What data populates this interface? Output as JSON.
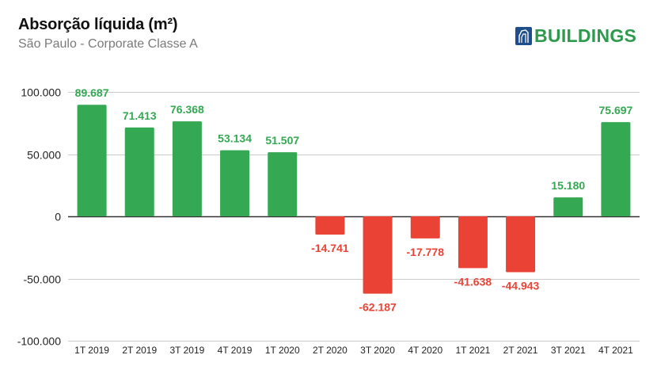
{
  "header": {
    "title": "Absorção líquida (m²)",
    "subtitle": "São Paulo - Corporate Classe A"
  },
  "logo": {
    "icon": "building-icon",
    "text": "BUILDINGS",
    "text_color": "#2e9a4e",
    "icon_color": "#1f4e8c"
  },
  "chart_data": {
    "type": "bar",
    "title": "Absorção líquida (m²)",
    "subtitle": "São Paulo - Corporate Classe A",
    "xlabel": "",
    "ylabel": "",
    "categories": [
      "1T 2019",
      "2T 2019",
      "3T 2019",
      "4T 2019",
      "1T 2020",
      "2T 2020",
      "3T 2020",
      "4T 2020",
      "1T 2021",
      "2T 2021",
      "3T 2021",
      "4T 2021"
    ],
    "values": [
      89687,
      71413,
      76368,
      53134,
      51507,
      -14741,
      -62187,
      -17778,
      -41638,
      -44943,
      15180,
      75697
    ],
    "data_labels": [
      "89.687",
      "71.413",
      "76.368",
      "53.134",
      "51.507",
      "-14.741",
      "-62.187",
      "-17.778",
      "-41.638",
      "-44.943",
      "15.180",
      "75.697"
    ],
    "ylim": [
      -100000,
      100000
    ],
    "yticks": [
      100000,
      50000,
      0,
      -50000,
      -100000
    ],
    "ytick_labels": [
      "100.000",
      "50.000",
      "0",
      "-50.000",
      "-100.000"
    ],
    "grid": true,
    "legend": "none",
    "colors": {
      "positive": "#34a853",
      "negative": "#ea4335",
      "grid": "#cccccc",
      "baseline": "#333333"
    }
  }
}
